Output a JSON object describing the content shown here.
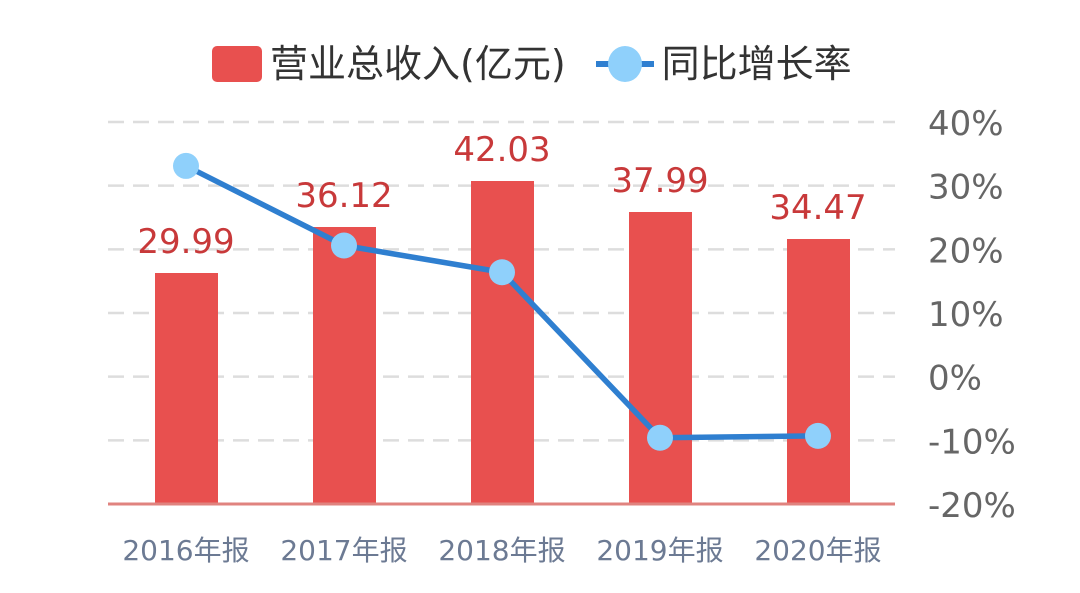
{
  "legend": {
    "bar_label": "营业总收入(亿元)",
    "line_label": "同比增长率"
  },
  "colors": {
    "bar": "#e8504f",
    "bar_label": "#c8393a",
    "line": "#2f7fd0",
    "marker": "#8fd0fb",
    "grid": "#dddddd",
    "axis_line": "#e0837f",
    "y_tick": "#666666",
    "x_tick": "#6c7a93"
  },
  "chart_data": {
    "type": "bar+line",
    "title": "",
    "categories": [
      "2016年报",
      "2017年报",
      "2018年报",
      "2019年报",
      "2020年报"
    ],
    "series": [
      {
        "name": "营业总收入(亿元)",
        "type": "bar",
        "values": [
          29.99,
          36.12,
          42.03,
          37.99,
          34.47
        ],
        "data_labels": [
          "29.99",
          "36.12",
          "42.03",
          "37.99",
          "34.47"
        ]
      },
      {
        "name": "同比增长率",
        "type": "line",
        "axis": "right",
        "values": [
          33.1,
          20.6,
          16.4,
          -9.6,
          -9.3
        ],
        "unit": "%"
      }
    ],
    "y_right": {
      "ticks": [
        "40%",
        "30%",
        "20%",
        "10%",
        "0%",
        "-10%",
        "-20%"
      ],
      "range": [
        -20,
        40
      ]
    },
    "legend_position": "top",
    "grid": "dashed horizontal"
  }
}
